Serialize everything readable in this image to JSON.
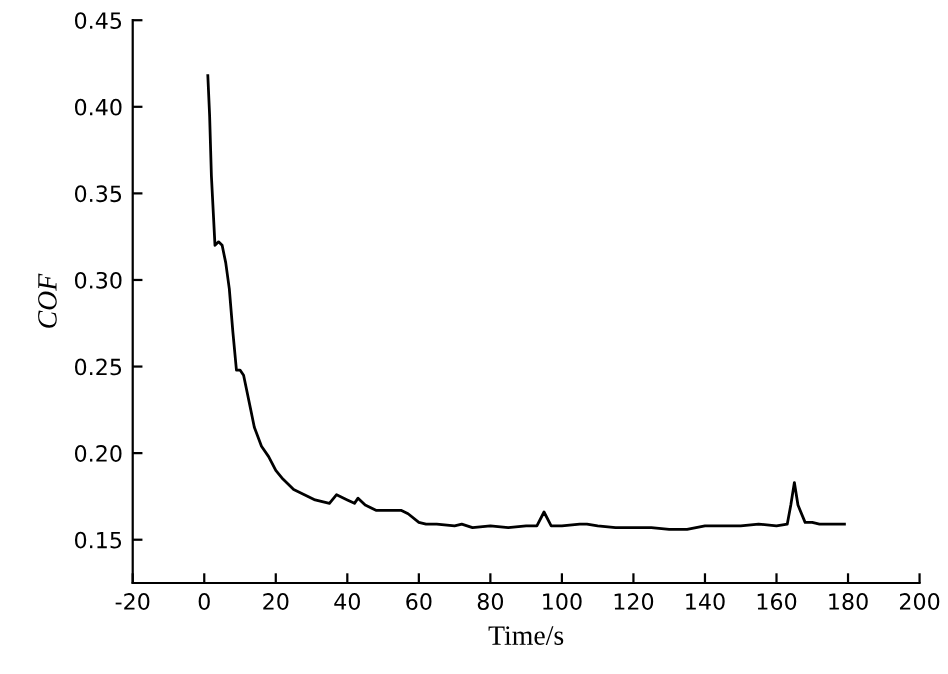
{
  "chart_data": {
    "type": "line",
    "xlabel": "Time/s",
    "ylabel": "COF",
    "color": "#000000",
    "x": [
      1,
      1.5,
      2,
      3,
      4,
      5,
      6,
      7,
      8,
      9,
      10,
      11,
      12,
      13,
      14,
      16,
      18,
      20,
      22,
      25,
      28,
      31,
      35,
      37,
      40,
      42,
      43,
      45,
      48,
      50,
      55,
      57,
      60,
      62,
      65,
      70,
      72,
      75,
      80,
      85,
      90,
      93,
      95,
      97,
      100,
      105,
      107,
      110,
      115,
      120,
      125,
      130,
      133,
      135,
      140,
      145,
      150,
      155,
      160,
      163,
      164,
      165,
      166,
      168,
      170,
      172,
      175,
      179
    ],
    "values": [
      0.418,
      0.395,
      0.36,
      0.32,
      0.322,
      0.32,
      0.31,
      0.295,
      0.27,
      0.248,
      0.248,
      0.245,
      0.235,
      0.225,
      0.215,
      0.204,
      0.198,
      0.19,
      0.185,
      0.179,
      0.176,
      0.173,
      0.171,
      0.176,
      0.173,
      0.171,
      0.174,
      0.17,
      0.167,
      0.167,
      0.167,
      0.165,
      0.16,
      0.159,
      0.159,
      0.158,
      0.159,
      0.157,
      0.158,
      0.157,
      0.158,
      0.158,
      0.166,
      0.158,
      0.158,
      0.159,
      0.159,
      0.158,
      0.157,
      0.157,
      0.157,
      0.156,
      0.156,
      0.156,
      0.158,
      0.158,
      0.158,
      0.159,
      0.158,
      0.159,
      0.17,
      0.183,
      0.17,
      0.16,
      0.16,
      0.159,
      0.159,
      0.159
    ],
    "xlim": [
      -20,
      200
    ],
    "xticks": [
      -20,
      0,
      20,
      40,
      60,
      80,
      100,
      120,
      140,
      160,
      180,
      200
    ],
    "ylim": [
      0.125,
      0.45
    ],
    "yticks": [
      {
        "value": 0.15,
        "label": "0.15"
      },
      {
        "value": 0.2,
        "label": "0.20"
      },
      {
        "value": 0.25,
        "label": "0.25"
      },
      {
        "value": 0.3,
        "label": "0.30"
      },
      {
        "value": 0.35,
        "label": "0.35"
      },
      {
        "value": 0.4,
        "label": "0.40"
      },
      {
        "value": 0.45,
        "label": "0.45"
      }
    ],
    "grid": false,
    "legend": false
  }
}
